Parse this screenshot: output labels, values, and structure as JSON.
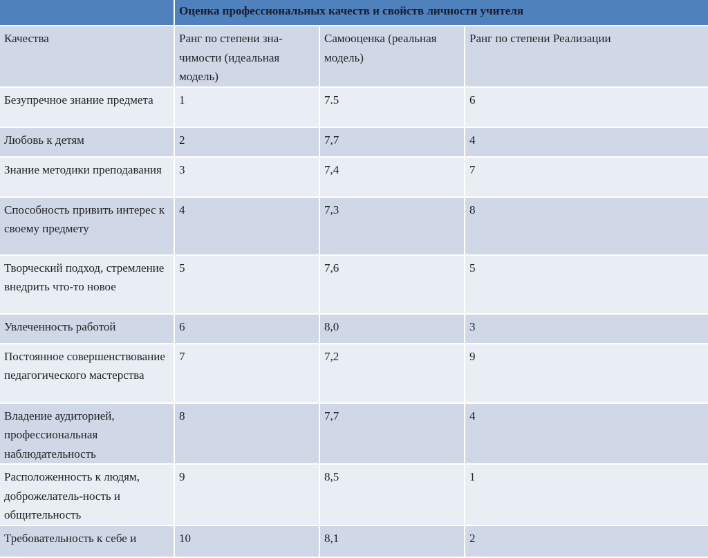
{
  "title": "Оценка профессиональных качеств и свойств личности учителя",
  "headers": [
    "Качества",
    "Ранг по степени зна-чимости (идеальная модель)",
    "Самооценка (реальная модель)",
    "Ранг по степени Реализации"
  ],
  "rows": [
    [
      "Безупречное знание предмета",
      "1",
      "7.5",
      "6"
    ],
    [
      "Любовь к детям",
      "2",
      "7,7",
      "4"
    ],
    [
      "Знание методики преподавания",
      "3",
      "7,4",
      "7"
    ],
    [
      "Способность привить интерес к своему предмету",
      "4",
      "7,3",
      "8"
    ],
    [
      "Творческий подход, стремление внедрить что-то новое",
      "5",
      "7,6",
      "5"
    ],
    [
      "Увлеченность работой",
      "6",
      "8,0",
      "3"
    ],
    [
      "Постоянное совершенствование педагогического мастерства",
      "7",
      "7,2",
      "9"
    ],
    [
      "Владение аудиторией, профессиональная наблюдательность",
      "8",
      "7,7",
      "4"
    ],
    [
      "Расположенность к людям, доброжелатель-ность и общительность",
      "9",
      "8,5",
      "1"
    ],
    [
      "Требовательность к себе и",
      "10",
      "8,1",
      "2"
    ]
  ],
  "colors": {
    "header": "#4f81bd",
    "band_dark": "#d0d8e8",
    "band_light": "#e9edf4"
  }
}
